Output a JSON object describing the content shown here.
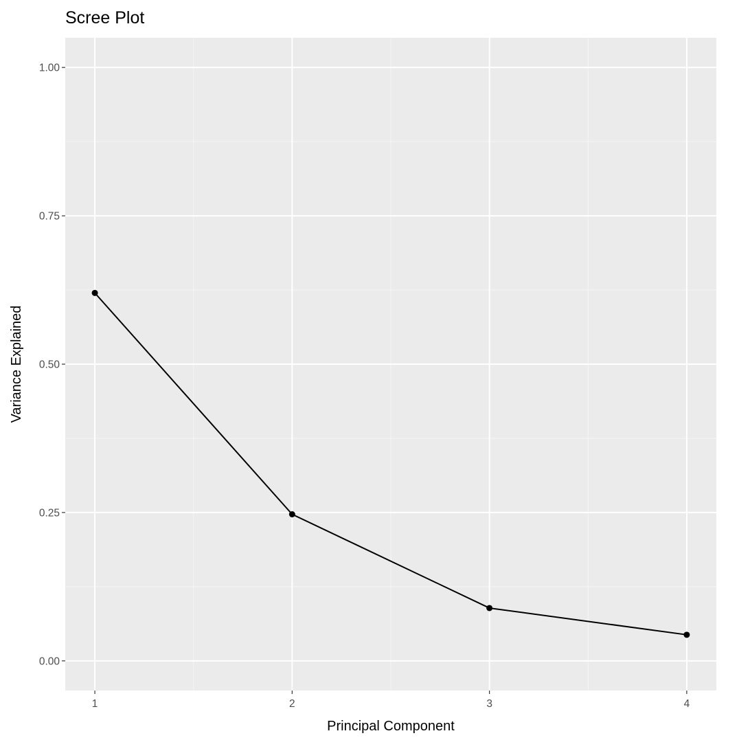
{
  "chart_data": {
    "type": "line",
    "title": "Scree Plot",
    "xlabel": "Principal Component",
    "ylabel": "Variance Explained",
    "x": [
      1,
      2,
      3,
      4
    ],
    "values": [
      0.62,
      0.247,
      0.089,
      0.044
    ],
    "xlim": [
      0.85,
      4.15
    ],
    "ylim": [
      -0.05,
      1.05
    ],
    "x_ticks": [
      1,
      2,
      3,
      4
    ],
    "x_tick_labels": [
      "1",
      "2",
      "3",
      "4"
    ],
    "y_ticks": [
      0,
      0.25,
      0.5,
      0.75,
      1
    ],
    "y_tick_labels": [
      "0.00",
      "0.25",
      "0.50",
      "0.75",
      "1.00"
    ],
    "grid": true,
    "markers": true,
    "colors": {
      "panel_background": "#ebebeb",
      "grid_major": "#ffffff",
      "grid_minor": "#f5f5f5",
      "line": "#000000",
      "tick_text": "#4d4d4d"
    }
  }
}
